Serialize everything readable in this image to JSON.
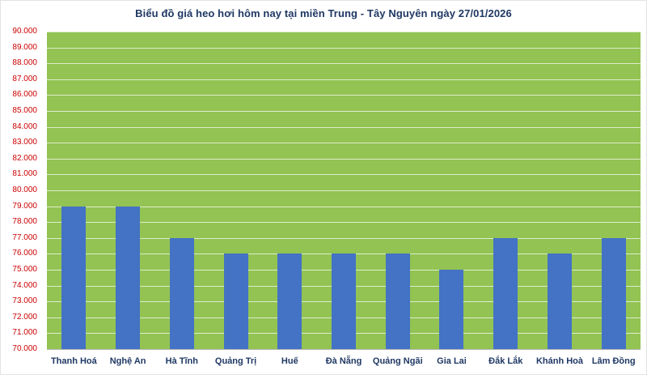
{
  "chart_data": {
    "type": "bar",
    "title": "Biểu đồ giá heo hơi hôm nay tại miền Trung - Tây Nguyên ngày 27/01/2026",
    "categories": [
      "Thanh Hoá",
      "Nghệ An",
      "Hà Tĩnh",
      "Quảng Trị",
      "Huế",
      "Đà Nẵng",
      "Quảng Ngãi",
      "Gia Lai",
      "Đắk Lắk",
      "Khánh Hoà",
      "Lâm Đồng"
    ],
    "values": [
      79000,
      79000,
      77000,
      76000,
      76000,
      76000,
      76000,
      75000,
      77000,
      76000,
      77000
    ],
    "xlabel": "",
    "ylabel": "",
    "ylim": [
      70000,
      90000
    ],
    "ytick_step": 1000,
    "ytick_labels": [
      "90.000",
      "89.000",
      "88.000",
      "87.000",
      "86.000",
      "85.000",
      "84.000",
      "83.000",
      "82.000",
      "81.000",
      "80.000",
      "79.000",
      "78.000",
      "77.000",
      "76.000",
      "75.000",
      "74.000",
      "73.000",
      "72.000",
      "71.000",
      "70.000"
    ],
    "grid": true,
    "legend": "none",
    "colors": {
      "bar": "#4472c4",
      "plot_bg": "#92c353",
      "gridline": "#ffffff",
      "ytick": "#cc0000",
      "xtick": "#1f3864",
      "title": "#1f3864"
    }
  }
}
